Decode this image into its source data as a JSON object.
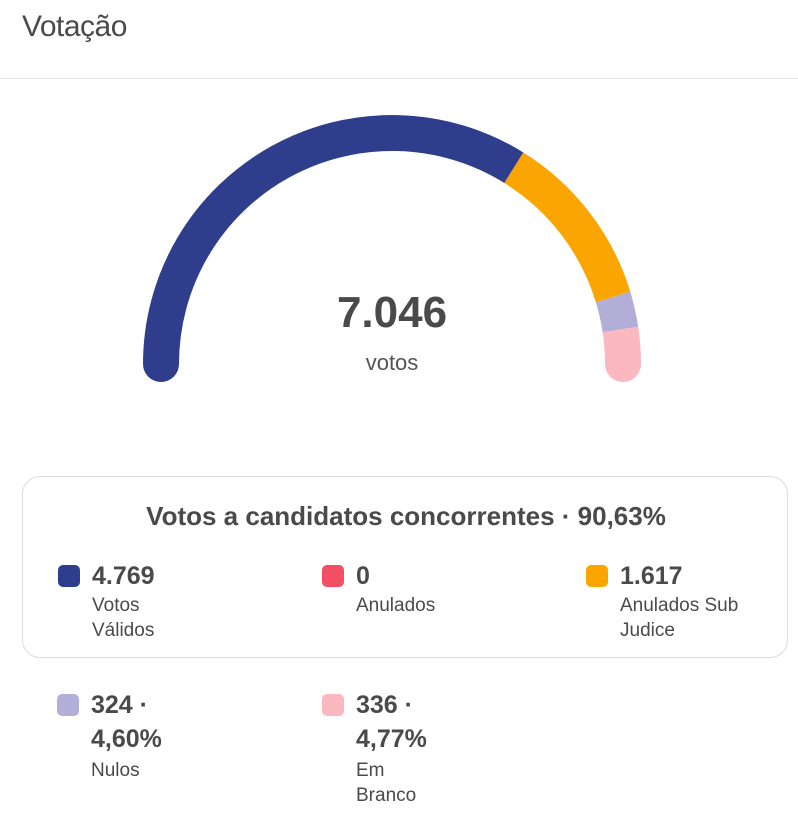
{
  "header": {
    "title": "Votação"
  },
  "gauge": {
    "total": "7.046",
    "unit": "votos"
  },
  "card": {
    "title": "Votos a candidatos concorrentes · 90,63%"
  },
  "legend": {
    "validos": {
      "value": "4.769",
      "label": "Votos Válidos",
      "color": "#2f3e8c"
    },
    "anulados": {
      "value": "0",
      "label": "Anulados",
      "color": "#f24e64"
    },
    "subjudice": {
      "value": "1.617",
      "label_line1": "Anulados Sub",
      "label_line2": "Judice",
      "color": "#fba500"
    },
    "nulos": {
      "value_line1": "324 ·",
      "value_line2": "4,60%",
      "label": "Nulos",
      "color": "#b3aed8"
    },
    "branco": {
      "value_line1": "336 ·",
      "value_line2": "4,77%",
      "label": "Em Branco",
      "color": "#fbb8c0"
    }
  },
  "chart_data": {
    "type": "pie",
    "subtype": "semicircle-gauge",
    "total": 7046,
    "categories": [
      "Votos Válidos",
      "Anulados",
      "Anulados Sub Judice",
      "Nulos",
      "Em Branco"
    ],
    "values": [
      4769,
      0,
      1617,
      324,
      336
    ],
    "colors": [
      "#2f3e8c",
      "#f24e64",
      "#fba500",
      "#b3aed8",
      "#fbb8c0"
    ]
  }
}
